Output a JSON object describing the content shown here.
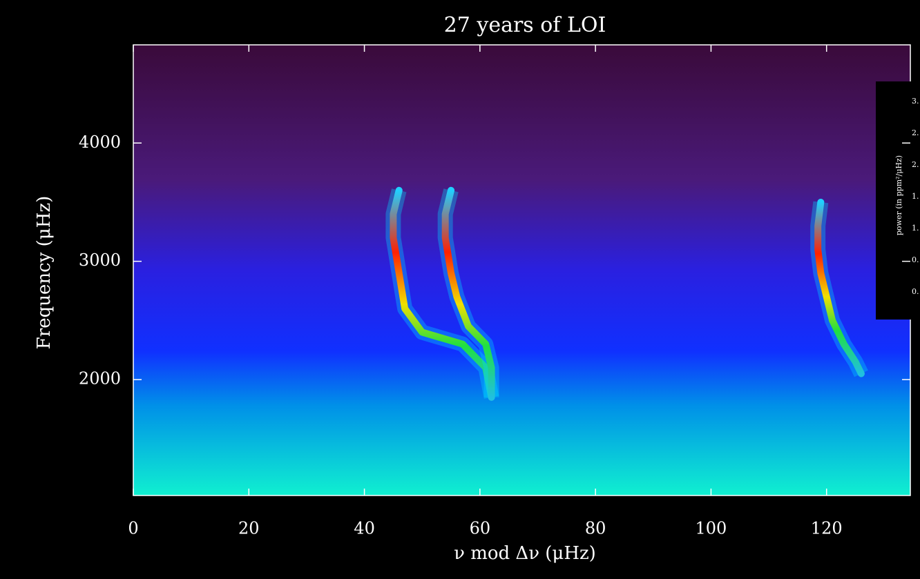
{
  "chart_data": {
    "type": "echelle",
    "title": "27 years of LOI",
    "x_label": "ν mod Δν (μHz)",
    "y_label": "Frequency (μHz)",
    "xlim": [
      0,
      134.5
    ],
    "xticks": [
      0,
      20,
      40,
      60,
      80,
      100,
      120
    ],
    "ylim": [
      1020,
      4830
    ],
    "yticks": [
      2000,
      3000,
      4000
    ],
    "ridges": [
      {
        "x": [
          62,
          61,
          57,
          50,
          47,
          46,
          45,
          45,
          46
        ],
        "y": [
          1850,
          2100,
          2300,
          2400,
          2600,
          2900,
          3200,
          3400,
          3600
        ]
      },
      {
        "x": [
          62,
          62,
          61,
          58,
          56,
          55,
          54,
          54,
          55
        ],
        "y": [
          1850,
          2100,
          2300,
          2450,
          2700,
          2900,
          3200,
          3400,
          3600
        ]
      },
      {
        "x": [
          126,
          125,
          123,
          121,
          120,
          119,
          118.5,
          118.5,
          119
        ],
        "y": [
          2050,
          2150,
          2300,
          2500,
          2700,
          2900,
          3100,
          3300,
          3500
        ]
      }
    ],
    "colorbar_title": "power (in ppm²/μHz)",
    "colorbar_labels": [
      "3.",
      "2.",
      "2.",
      "1.",
      "1.",
      "0.",
      "0."
    ]
  }
}
